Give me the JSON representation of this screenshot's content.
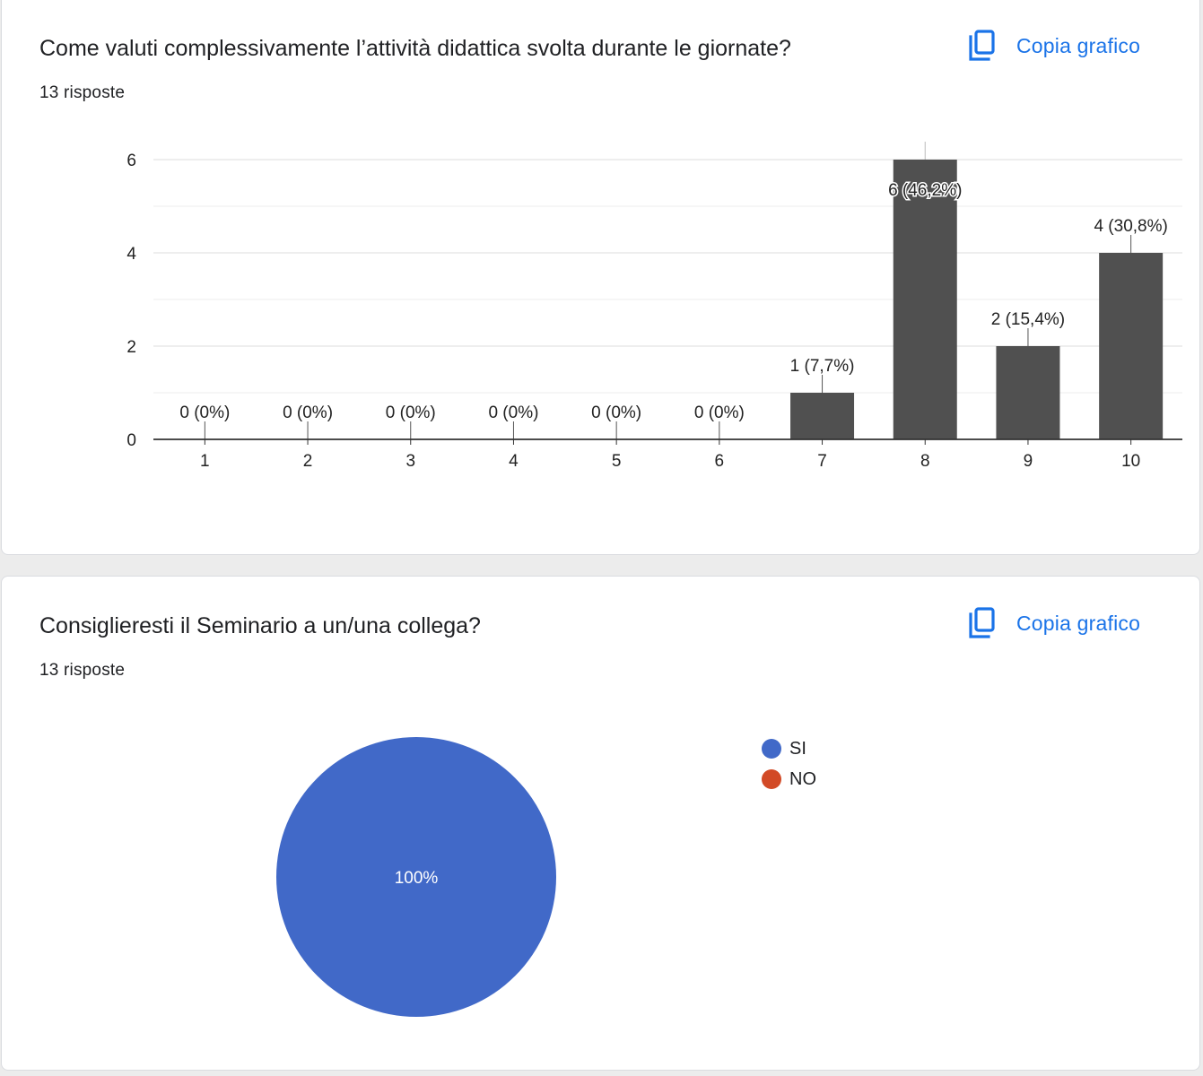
{
  "colors": {
    "bar": "#505050",
    "pie_si": "#4169c8",
    "pie_no": "#d24a26",
    "link": "#1a73e8",
    "gridline": "#e8e8e8",
    "axis": "#333333"
  },
  "questions": [
    {
      "title": "Come valuti complessivamente l’attività didattica svolta durante le giornate?",
      "response_count": "13 risposte",
      "copy_label": "Copia grafico",
      "copy_icon": "copy-icon"
    },
    {
      "title": "Consiglieresti il Seminario a un/una collega?",
      "response_count": "13 risposte",
      "copy_label": "Copia grafico",
      "copy_icon": "copy-icon"
    }
  ],
  "chart_data": [
    {
      "type": "bar",
      "categories": [
        "1",
        "2",
        "3",
        "4",
        "5",
        "6",
        "7",
        "8",
        "9",
        "10"
      ],
      "values": [
        0,
        0,
        0,
        0,
        0,
        0,
        1,
        6,
        2,
        4
      ],
      "data_labels": [
        "0 (0%)",
        "0 (0%)",
        "0 (0%)",
        "0 (0%)",
        "0 (0%)",
        "0 (0%)",
        "1 (7,7%)",
        "6 (46,2%)",
        "2 (15,4%)",
        "4 (30,8%)"
      ],
      "y_ticks": [
        0,
        2,
        4,
        6
      ],
      "ylim": [
        0,
        6
      ],
      "grid": true,
      "minor_grid": true
    },
    {
      "type": "pie",
      "labels": [
        "SI",
        "NO"
      ],
      "values": [
        100,
        0
      ],
      "slice_labels": [
        "100%",
        ""
      ],
      "colors": [
        "#4169c8",
        "#d24a26"
      ],
      "legend_position": "right"
    }
  ]
}
